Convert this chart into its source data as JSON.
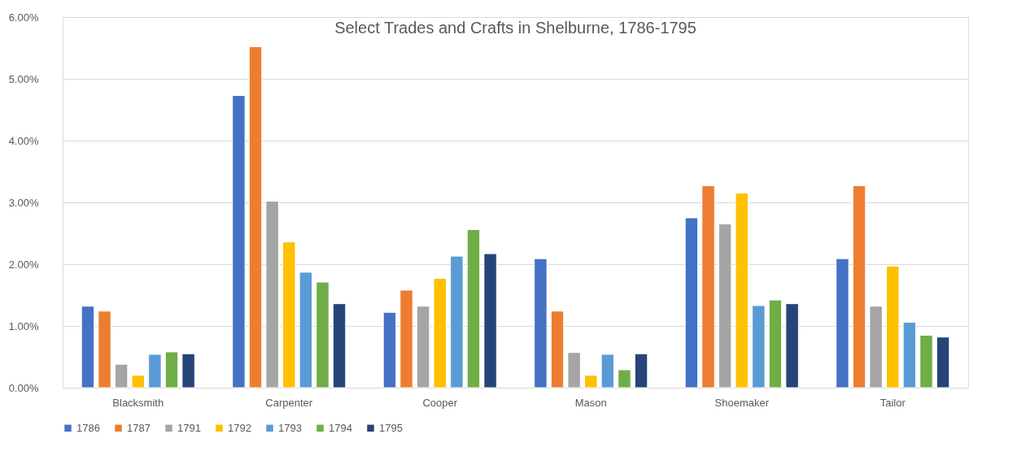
{
  "chart_data": {
    "type": "bar",
    "title": "Select Trades and Crafts in Shelburne, 1786-1795",
    "categories": [
      "Blacksmith",
      "Carpenter",
      "Cooper",
      "Mason",
      "Shoemaker",
      "Tailor"
    ],
    "series": [
      {
        "name": "1786",
        "color": "#4472c4",
        "values": [
          1.32,
          4.73,
          1.22,
          2.09,
          2.75,
          2.09
        ]
      },
      {
        "name": "1787",
        "color": "#ed7d31",
        "values": [
          1.24,
          5.52,
          1.58,
          1.24,
          3.27,
          3.27
        ]
      },
      {
        "name": "1791",
        "color": "#a5a5a5",
        "values": [
          0.38,
          3.02,
          1.32,
          0.57,
          2.65,
          1.32
        ]
      },
      {
        "name": "1792",
        "color": "#ffc000",
        "values": [
          0.2,
          2.36,
          1.77,
          0.2,
          3.15,
          1.97
        ]
      },
      {
        "name": "1793",
        "color": "#5b9bd5",
        "values": [
          0.54,
          1.87,
          2.13,
          0.54,
          1.33,
          1.06
        ]
      },
      {
        "name": "1794",
        "color": "#70ad47",
        "values": [
          0.58,
          1.71,
          2.56,
          0.29,
          1.42,
          0.85
        ]
      },
      {
        "name": "1795",
        "color": "#264478",
        "values": [
          0.55,
          1.36,
          2.17,
          0.55,
          1.36,
          0.82
        ]
      }
    ],
    "ylim": [
      0,
      6
    ],
    "yticks": [
      {
        "value": 0,
        "label": "0.00%"
      },
      {
        "value": 1,
        "label": "1.00%"
      },
      {
        "value": 2,
        "label": "2.00%"
      },
      {
        "value": 3,
        "label": "3.00%"
      },
      {
        "value": 4,
        "label": "4.00%"
      },
      {
        "value": 5,
        "label": "5.00%"
      },
      {
        "value": 6,
        "label": "6.00%"
      }
    ],
    "grid": "y",
    "legend": "bottom"
  }
}
